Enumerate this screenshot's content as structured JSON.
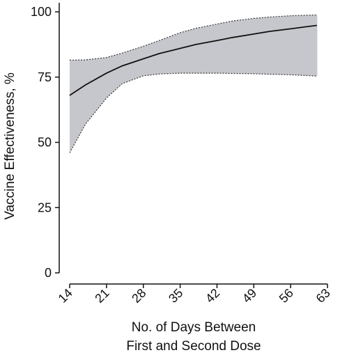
{
  "chart_data": {
    "type": "line",
    "title": "",
    "xlabel_line1": "No. of Days Between",
    "xlabel_line2": "First and Second Dose",
    "ylabel": "Vaccine Effectiveness, %",
    "xlim": [
      14,
      63
    ],
    "ylim": [
      0,
      100
    ],
    "x_ticks": [
      14,
      21,
      28,
      35,
      42,
      49,
      56,
      63
    ],
    "y_ticks": [
      0,
      25,
      50,
      75,
      100
    ],
    "grid": false,
    "series": [
      {
        "role": "estimate",
        "style": "solid",
        "x": [
          14,
          17,
          21,
          24,
          28,
          31,
          35,
          38,
          42,
          45,
          49,
          52,
          56,
          59,
          61
        ],
        "y": [
          68,
          72,
          76.5,
          79.3,
          82,
          84,
          86,
          87.5,
          89,
          90.2,
          91.5,
          92.5,
          93.5,
          94.3,
          94.8
        ]
      },
      {
        "role": "upper 95% CI",
        "style": "dotted",
        "x": [
          14,
          17,
          21,
          24,
          28,
          31,
          35,
          38,
          42,
          45,
          49,
          52,
          56,
          59,
          61
        ],
        "y": [
          81.5,
          81.6,
          82.5,
          84.2,
          86.8,
          89,
          92,
          93.7,
          95.3,
          96.5,
          97.5,
          98,
          98.5,
          98.7,
          98.8
        ]
      },
      {
        "role": "lower 95% CI",
        "style": "dotted",
        "x": [
          14,
          17,
          21,
          24,
          28,
          31,
          35,
          38,
          42,
          45,
          49,
          52,
          56,
          59,
          61
        ],
        "y": [
          46,
          57,
          67,
          72.5,
          75.5,
          76.2,
          76.5,
          76.5,
          76.5,
          76.4,
          76.3,
          76.1,
          75.9,
          75.6,
          75.4
        ]
      }
    ],
    "colors": {
      "estimate": "#111111",
      "ci_band": "#c6c7cc",
      "ci_border": "#333333",
      "axis": "#111111"
    }
  }
}
